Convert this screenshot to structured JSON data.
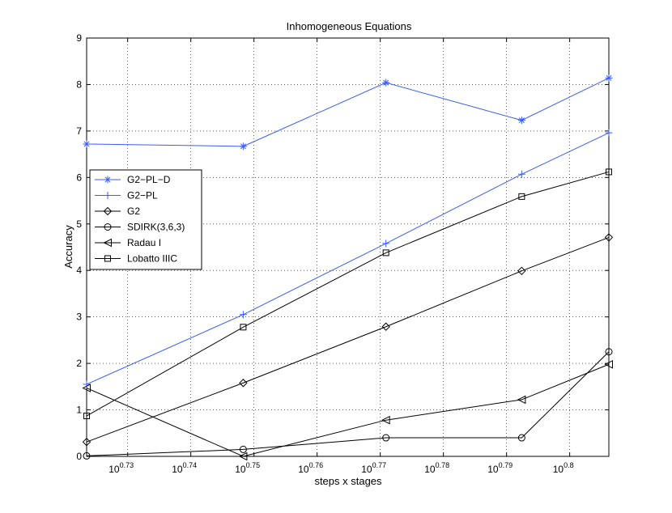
{
  "chart_data": {
    "type": "line",
    "title": "Inhomogeneous Equations",
    "xlabel": "steps x stages",
    "ylabel": "Accuracy",
    "x_scale": "log10",
    "x_exponents": [
      0.7235,
      0.7483,
      0.7709,
      0.7924,
      0.8062
    ],
    "xlim_exponent": [
      0.7235,
      0.8062
    ],
    "ylim": [
      0,
      9
    ],
    "y_ticks": [
      "0",
      "1",
      "2",
      "3",
      "4",
      "5",
      "6",
      "7",
      "8",
      "9"
    ],
    "x_ticks": [
      {
        "base": "10",
        "exp": "0.73",
        "value": 0.73
      },
      {
        "base": "10",
        "exp": "0.74",
        "value": 0.74
      },
      {
        "base": "10",
        "exp": "0.75",
        "value": 0.75
      },
      {
        "base": "10",
        "exp": "0.76",
        "value": 0.76
      },
      {
        "base": "10",
        "exp": "0.77",
        "value": 0.77
      },
      {
        "base": "10",
        "exp": "0.78",
        "value": 0.78
      },
      {
        "base": "10",
        "exp": "0.79",
        "value": 0.79
      },
      {
        "base": "10",
        "exp": "0.8",
        "value": 0.8
      }
    ],
    "grid": true,
    "legend_position": "left-middle",
    "series": [
      {
        "name": "G2−PL−D",
        "color": "#3a5df5",
        "marker": "asterisk",
        "values": [
          6.72,
          6.67,
          8.04,
          7.23,
          8.14
        ]
      },
      {
        "name": "G2−PL",
        "color": "#3a5df5",
        "marker": "plus",
        "values": [
          1.55,
          3.05,
          4.58,
          6.07,
          6.96
        ]
      },
      {
        "name": "G2",
        "color": "#000000",
        "marker": "diamond",
        "values": [
          0.31,
          1.58,
          2.79,
          3.99,
          4.71
        ]
      },
      {
        "name": "SDIRK(3,6,3)",
        "color": "#000000",
        "marker": "circle",
        "values": [
          0.01,
          0.15,
          0.4,
          0.4,
          2.25
        ]
      },
      {
        "name": "Radau I",
        "color": "#000000",
        "marker": "triangle-left",
        "values": [
          1.47,
          0.0,
          0.78,
          1.22,
          1.98
        ]
      },
      {
        "name": "Lobatto IIIC",
        "color": "#000000",
        "marker": "square",
        "values": [
          0.87,
          2.78,
          4.38,
          5.59,
          6.12
        ]
      }
    ]
  }
}
